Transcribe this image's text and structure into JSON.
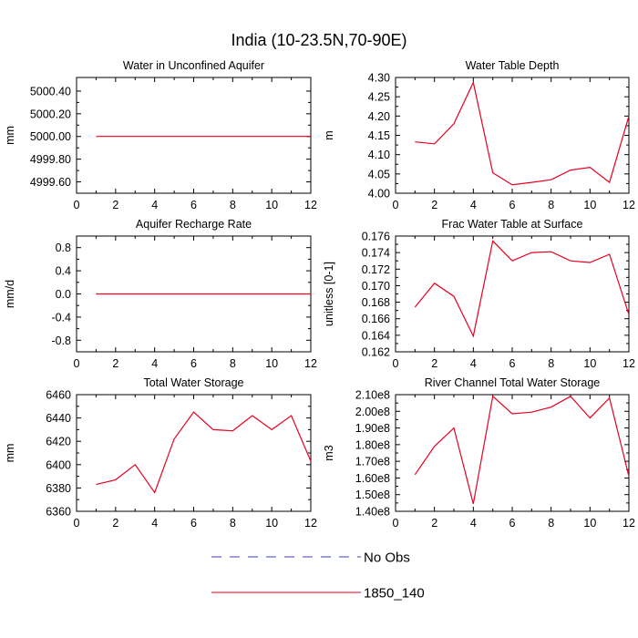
{
  "title": "India (10-23.5N,70-90E)",
  "colors": {
    "model": "#e8001f",
    "obs": "#3f3fbf"
  },
  "legend": [
    {
      "label": "No Obs",
      "style": "dashed",
      "color": "#3f3fbf"
    },
    {
      "label": "1850_140",
      "style": "solid",
      "color": "#e8001f"
    }
  ],
  "chart_data": [
    {
      "type": "line",
      "title": "Water in Unconfined Aquifer",
      "ylabel": "mm",
      "xlim": [
        0,
        12
      ],
      "xticks": [
        0,
        2,
        4,
        6,
        8,
        10,
        12
      ],
      "ylim": [
        4999.5,
        5000.52
      ],
      "yticks": [
        4999.6,
        4999.8,
        5000.0,
        5000.2,
        5000.4
      ],
      "yticklabels": [
        "4999.60",
        "4999.80",
        "5000.00",
        "5000.20",
        "5000.40"
      ],
      "x": [
        1,
        12
      ],
      "series": [
        {
          "name": "1850_140",
          "values": [
            5000.0,
            5000.0
          ]
        }
      ]
    },
    {
      "type": "line",
      "title": "Water Table Depth",
      "ylabel": "m",
      "xlim": [
        0,
        12
      ],
      "xticks": [
        0,
        2,
        4,
        6,
        8,
        10,
        12
      ],
      "ylim": [
        4.0,
        4.3
      ],
      "yticks": [
        4.0,
        4.05,
        4.1,
        4.15,
        4.2,
        4.25,
        4.3
      ],
      "yticklabels": [
        "4.00",
        "4.05",
        "4.10",
        "4.15",
        "4.20",
        "4.25",
        "4.30"
      ],
      "x": [
        1,
        2,
        3,
        4,
        5,
        6,
        7,
        8,
        9,
        10,
        11,
        12
      ],
      "series": [
        {
          "name": "1850_140",
          "values": [
            4.133,
            4.128,
            4.18,
            4.287,
            4.053,
            4.022,
            4.028,
            4.035,
            4.06,
            4.067,
            4.028,
            4.2
          ]
        }
      ]
    },
    {
      "type": "line",
      "title": "Aquifer Recharge Rate",
      "ylabel": "mm/d",
      "xlim": [
        0,
        12
      ],
      "xticks": [
        0,
        2,
        4,
        6,
        8,
        10,
        12
      ],
      "ylim": [
        -1.0,
        1.0
      ],
      "yticks": [
        -0.8,
        -0.4,
        0.0,
        0.4,
        0.8
      ],
      "yticklabels": [
        "-0.8",
        "-0.4",
        "0.0",
        "0.4",
        "0.8"
      ],
      "x": [
        1,
        12
      ],
      "series": [
        {
          "name": "1850_140",
          "values": [
            0.0,
            0.0
          ]
        }
      ]
    },
    {
      "type": "line",
      "title": "Frac Water Table at Surface",
      "ylabel": "unitless [0-1]",
      "xlim": [
        0,
        12
      ],
      "xticks": [
        0,
        2,
        4,
        6,
        8,
        10,
        12
      ],
      "ylim": [
        0.162,
        0.176
      ],
      "yticks": [
        0.162,
        0.164,
        0.166,
        0.168,
        0.17,
        0.172,
        0.174,
        0.176
      ],
      "yticklabels": [
        "0.162",
        "0.164",
        "0.166",
        "0.168",
        "0.170",
        "0.172",
        "0.174",
        "0.176"
      ],
      "x": [
        1,
        2,
        3,
        4,
        5,
        6,
        7,
        8,
        9,
        10,
        11,
        12
      ],
      "series": [
        {
          "name": "1850_140",
          "values": [
            0.1674,
            0.1703,
            0.1687,
            0.1639,
            0.1754,
            0.173,
            0.174,
            0.1741,
            0.173,
            0.1728,
            0.1738,
            0.1665
          ]
        }
      ]
    },
    {
      "type": "line",
      "title": "Total Water Storage",
      "ylabel": "mm",
      "xlim": [
        0,
        12
      ],
      "xticks": [
        0,
        2,
        4,
        6,
        8,
        10,
        12
      ],
      "ylim": [
        6360,
        6460
      ],
      "yticks": [
        6360,
        6380,
        6400,
        6420,
        6440,
        6460
      ],
      "yticklabels": [
        "6360",
        "6380",
        "6400",
        "6420",
        "6440",
        "6460"
      ],
      "x": [
        1,
        2,
        3,
        4,
        5,
        6,
        7,
        8,
        9,
        10,
        11,
        12
      ],
      "series": [
        {
          "name": "1850_140",
          "values": [
            6383,
            6387,
            6400,
            6376,
            6422,
            6445,
            6430,
            6429,
            6442,
            6430,
            6442,
            6403
          ]
        }
      ]
    },
    {
      "type": "line",
      "title": "River Channel Total Water Storage",
      "ylabel": "m3",
      "xlim": [
        0,
        12
      ],
      "xticks": [
        0,
        2,
        4,
        6,
        8,
        10,
        12
      ],
      "ylim": [
        140000000,
        210000000
      ],
      "yticks": [
        140000000,
        150000000,
        160000000,
        170000000,
        180000000,
        190000000,
        200000000,
        210000000
      ],
      "yticklabels": [
        "1.40e8",
        "1.50e8",
        "1.60e8",
        "1.70e8",
        "1.80e8",
        "1.90e8",
        "2.00e8",
        "2.10e8"
      ],
      "x": [
        1,
        2,
        3,
        4,
        5,
        6,
        7,
        8,
        9,
        10,
        11,
        12
      ],
      "series": [
        {
          "name": "1850_140",
          "values": [
            162000000,
            179000000,
            190000000,
            144500000,
            209000000,
            198500000,
            199500000,
            202500000,
            209000000,
            196000000,
            208000000,
            161000000
          ]
        }
      ]
    }
  ]
}
